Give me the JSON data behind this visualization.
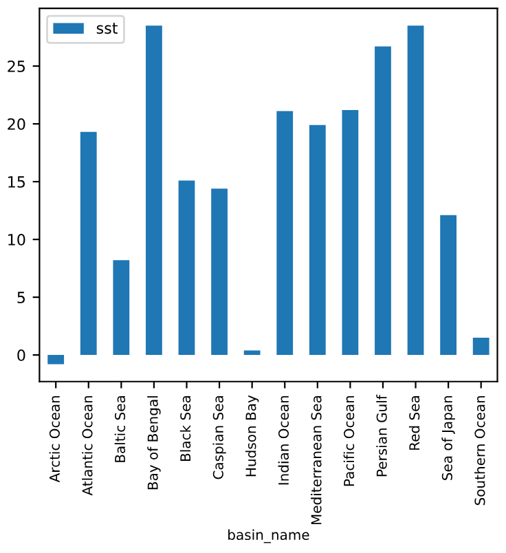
{
  "chart_data": {
    "type": "bar",
    "xlabel": "basin_name",
    "categories": [
      "Arctic Ocean",
      "Atlantic Ocean",
      "Baltic Sea",
      "Bay of Bengal",
      "Black Sea",
      "Caspian Sea",
      "Hudson Bay",
      "Indian Ocean",
      "Mediterranean Sea",
      "Pacific Ocean",
      "Persian Gulf",
      "Red Sea",
      "Sea of Japan",
      "Southern Ocean"
    ],
    "series": [
      {
        "name": "sst",
        "color": "#1f77b4",
        "values": [
          -0.8,
          19.3,
          8.2,
          28.5,
          15.1,
          14.4,
          0.4,
          21.1,
          19.9,
          21.2,
          26.7,
          28.5,
          12.1,
          1.5
        ]
      }
    ],
    "ylim": [
      -2.3,
      30.0
    ],
    "yticks": [
      0,
      5,
      10,
      15,
      20,
      25
    ],
    "legend": "upper left",
    "grid": false
  }
}
